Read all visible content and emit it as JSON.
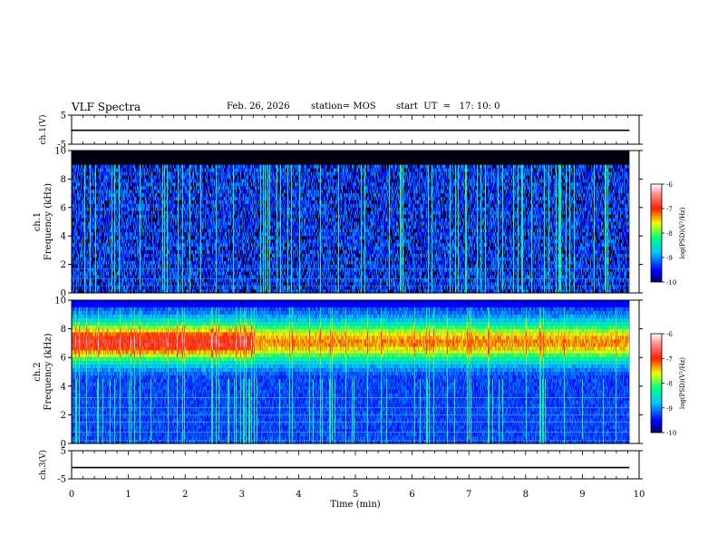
{
  "header": {
    "title": "VLF Spectra",
    "date": "Feb. 26, 2026",
    "station": "station= MOS",
    "start": "start  UT  =   17: 10: 0"
  },
  "chart_data": [
    {
      "type": "line",
      "ylabel": "ch.1(V)",
      "ylim": [
        -5,
        5
      ],
      "yticks": [
        "5",
        "-5"
      ],
      "series": [
        {
          "values": [
            -0.2,
            -0.2,
            -0.2,
            -0.2
          ]
        }
      ],
      "xlim": [
        0,
        10
      ]
    },
    {
      "type": "heatmap",
      "ylabel": "ch.1\nFrequency (kHz)",
      "ylabel_lines": [
        "ch.1",
        "Frequency (kHz)"
      ],
      "ylim": [
        0,
        10
      ],
      "yticks": [
        "0",
        "2",
        "4",
        "6",
        "8",
        "10"
      ],
      "xlim": [
        0,
        10
      ],
      "data_end_min": 9.83,
      "colorbar": {
        "label": "log(PSD)(V²/Hz)",
        "range": [
          -10,
          -6
        ],
        "ticks": [
          "-6",
          "-7",
          "-8",
          "-9",
          "-10"
        ]
      }
    },
    {
      "type": "heatmap",
      "ylabel": "ch.2\nFrequency (kHz)",
      "ylabel_lines": [
        "ch.2",
        "Frequency (kHz)"
      ],
      "ylim": [
        0,
        10
      ],
      "yticks": [
        "0",
        "2",
        "4",
        "6",
        "8",
        "10"
      ],
      "xlim": [
        0,
        10
      ],
      "data_end_min": 9.83,
      "colorbar": {
        "label": "log(PSD)(V²/Hz)",
        "range": [
          -10,
          -6
        ],
        "ticks": [
          "-6",
          "-7",
          "-8",
          "-9",
          "-10"
        ]
      }
    },
    {
      "type": "line",
      "ylabel": "ch.3(V)",
      "ylim": [
        -5,
        5
      ],
      "yticks": [
        "5",
        "-5"
      ],
      "series": [
        {
          "values": [
            -1,
            -1,
            -1,
            -1
          ]
        }
      ],
      "xlim": [
        0,
        10
      ],
      "xlabel": "Time  (min)",
      "xticks": [
        "0",
        "1",
        "2",
        "3",
        "4",
        "5",
        "6",
        "7",
        "8",
        "9",
        "10"
      ]
    }
  ]
}
